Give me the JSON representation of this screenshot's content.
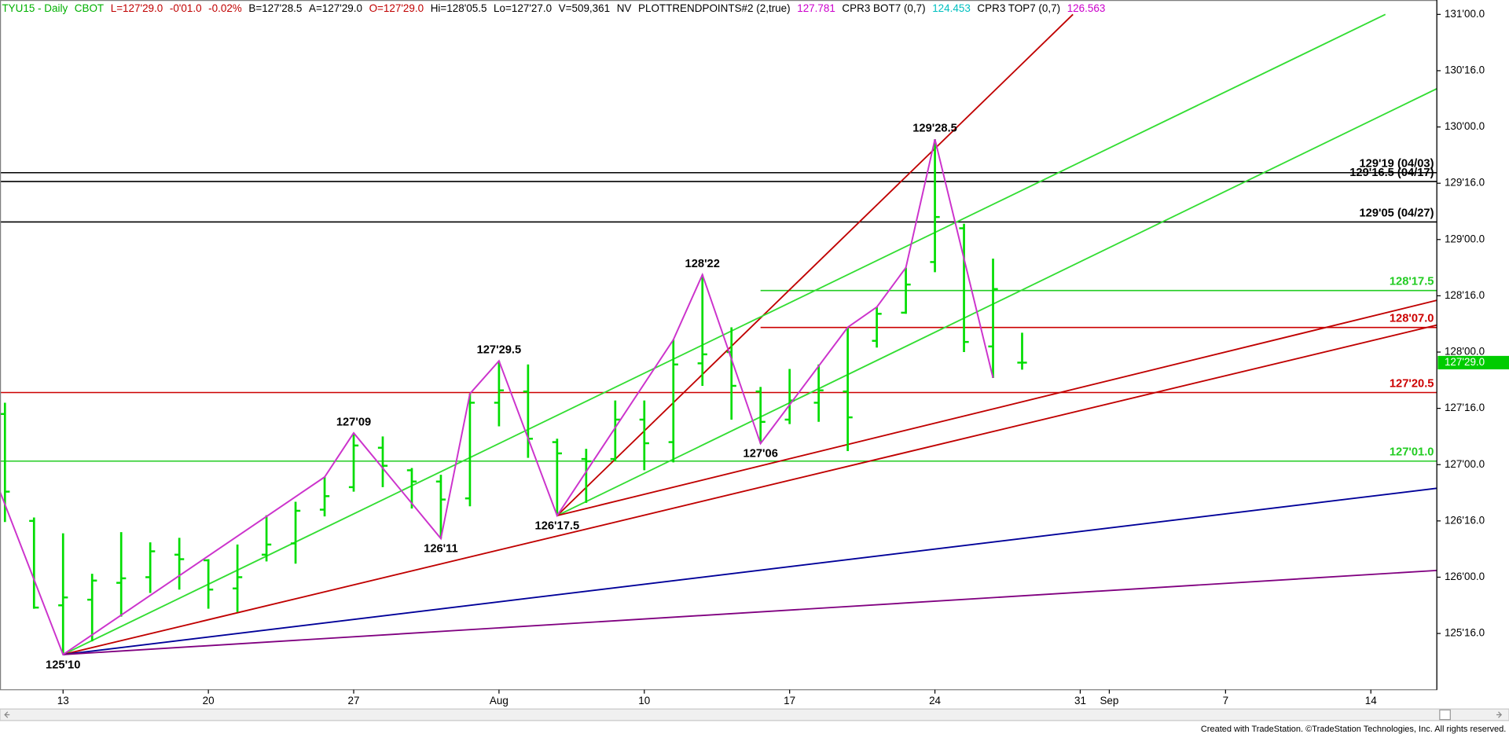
{
  "header": [
    {
      "text": "TYU15 - Daily",
      "color": "#00b000"
    },
    {
      "text": "CBOT",
      "color": "#00b000"
    },
    {
      "text": "L=127'29.0",
      "color": "#c00000"
    },
    {
      "text": "-0'01.0",
      "color": "#c00000"
    },
    {
      "text": "-0.02%",
      "color": "#c00000"
    },
    {
      "text": "B=127'28.5",
      "color": "#000000"
    },
    {
      "text": "A=127'29.0",
      "color": "#000000"
    },
    {
      "text": "O=127'29.0",
      "color": "#c00000"
    },
    {
      "text": "Hi=128'05.5",
      "color": "#000000"
    },
    {
      "text": "Lo=127'27.0",
      "color": "#000000"
    },
    {
      "text": "V=509,361",
      "color": "#000000"
    },
    {
      "text": "NV",
      "color": "#000000"
    },
    {
      "text": "PLOTTRENDPOINTS#2 (2,true)",
      "color": "#000000"
    },
    {
      "text": "127.781",
      "color": "#cc00cc"
    },
    {
      "text": "CPR3 BOT7 (0,7)",
      "color": "#000000"
    },
    {
      "text": "124.453",
      "color": "#00c0c0"
    },
    {
      "text": "CPR3 TOP7 (0,7)",
      "color": "#000000"
    },
    {
      "text": "126.563",
      "color": "#cc00cc"
    }
  ],
  "footer": "Created with TradeStation. ©TradeStation Technologies, Inc. All rights reserved.",
  "chart_data": {
    "type": "ohlc",
    "color": "#00dd00",
    "grid": false,
    "xlim": [
      -0.17,
      49.27
    ],
    "ylim": [
      125.0,
      131.128
    ],
    "xticks": [
      {
        "value": 2,
        "label": "13"
      },
      {
        "value": 7,
        "label": "20"
      },
      {
        "value": 12,
        "label": "27"
      },
      {
        "value": 17,
        "label": "Aug"
      },
      {
        "value": 22,
        "label": "10"
      },
      {
        "value": 27,
        "label": "17"
      },
      {
        "value": 32,
        "label": "24"
      },
      {
        "value": 37,
        "label": "31"
      },
      {
        "value": 38,
        "label": "Sep"
      },
      {
        "value": 42,
        "label": "7"
      },
      {
        "value": 47,
        "label": "14"
      }
    ],
    "yticks": [
      {
        "value": 131,
        "label": "131'00.0"
      },
      {
        "value": 130.5,
        "label": "130'16.0"
      },
      {
        "value": 130,
        "label": "130'00.0"
      },
      {
        "value": 129.5,
        "label": "129'16.0"
      },
      {
        "value": 129,
        "label": "129'00.0"
      },
      {
        "value": 128.5,
        "label": "128'16.0"
      },
      {
        "value": 128,
        "label": "128'00.0"
      },
      {
        "value": 127.5,
        "label": "127'16.0"
      },
      {
        "value": 127,
        "label": "127'00.0"
      },
      {
        "value": 126.5,
        "label": "126'16.0"
      },
      {
        "value": 126,
        "label": "126'00.0"
      },
      {
        "value": 125.5,
        "label": "125'16.0"
      }
    ],
    "x": [
      0,
      1,
      2,
      3,
      4,
      5,
      6,
      7,
      8,
      9,
      10,
      11,
      12,
      13,
      14,
      15,
      16,
      17,
      18,
      19,
      20,
      21,
      22,
      23,
      24,
      25,
      26,
      27,
      28,
      29,
      30,
      31,
      32,
      33,
      34,
      35
    ],
    "open": [
      127.45,
      126.5,
      125.75,
      125.8,
      125.95,
      126.0,
      126.2,
      126.15,
      125.9,
      126.2,
      126.3,
      126.6,
      126.8,
      127.15,
      126.95,
      126.85,
      126.7,
      127.55,
      127.65,
      127.2,
      127.05,
      127.05,
      127.4,
      127.2,
      127.9,
      128.0,
      127.65,
      127.4,
      127.55,
      127.65,
      128.1,
      128.35,
      128.8,
      129.1,
      128.05,
      127.90625
    ],
    "high": [
      127.55,
      126.53,
      126.39,
      126.03,
      126.4,
      126.31,
      126.35,
      126.16,
      126.29,
      126.55,
      126.67,
      126.89,
      127.28125,
      127.25,
      126.97,
      126.91,
      127.63,
      127.921875,
      127.89,
      127.23,
      127.14,
      127.57,
      127.57,
      128.11,
      128.6875,
      128.22,
      127.69,
      127.85,
      127.89,
      128.22,
      128.4,
      128.75,
      129.890625,
      129.14,
      128.83,
      128.171875
    ],
    "low": [
      126.49,
      125.72,
      125.3125,
      125.43,
      125.65,
      125.86,
      125.89,
      125.72,
      125.69,
      126.14,
      126.12,
      126.54,
      126.76,
      126.8,
      126.61,
      126.34375,
      126.63,
      127.34,
      127.06,
      126.546875,
      126.66,
      127.03,
      126.95,
      127.02,
      127.7,
      127.4,
      127.1875,
      127.36,
      127.38,
      127.12,
      128.04,
      128.34,
      128.71,
      128.0,
      127.77,
      127.84375
    ],
    "close": [
      126.76,
      125.73,
      125.82,
      125.97,
      125.99,
      126.23,
      126.16,
      125.89,
      126.0,
      126.29,
      126.59,
      126.72,
      127.17,
      126.99,
      126.85,
      126.69,
      127.55,
      127.66,
      127.23,
      127.1,
      127.03,
      127.4,
      127.19,
      127.89,
      127.98,
      127.7,
      127.38,
      127.57,
      127.66,
      127.42,
      128.34,
      128.6,
      129.2,
      128.09,
      128.56,
      127.90625
    ],
    "last_price": {
      "value": 127.90625,
      "label": "127'29.0",
      "color": "#00cc00"
    },
    "levels": [
      {
        "value": 129.59375,
        "label": "129'19 (04/03)",
        "color": "#000000"
      },
      {
        "value": 129.515625,
        "label": "129'16.5 (04/17)",
        "color": "#000000"
      },
      {
        "value": 129.15625,
        "label": "129'05 (04/27)",
        "color": "#000000"
      },
      {
        "value": 128.546875,
        "label": "128'17.5",
        "color": "#22cc22",
        "from": 26
      },
      {
        "value": 128.21875,
        "label": "128'07.0",
        "color": "#cc0000",
        "from": 26
      },
      {
        "value": 127.640625,
        "label": "127'20.5",
        "color": "#cc0000"
      },
      {
        "value": 127.03125,
        "label": "127'01.0",
        "color": "#22cc22"
      }
    ],
    "trendlines": [
      {
        "color": "#c00000",
        "x": [
          19,
          36.75
        ],
        "y": [
          126.546875,
          131.0
        ]
      },
      {
        "color": "#33dd33",
        "x": [
          2,
          47.5
        ],
        "y": [
          125.3125,
          131.0
        ]
      },
      {
        "color": "#33dd33",
        "x": [
          19,
          49.27
        ],
        "y": [
          126.546875,
          130.34
        ]
      },
      {
        "color": "#c00000",
        "x": [
          2,
          49.27
        ],
        "y": [
          125.3125,
          128.24
        ]
      },
      {
        "color": "#c00000",
        "x": [
          19,
          49.27
        ],
        "y": [
          126.546875,
          128.46
        ]
      },
      {
        "color": "#000099",
        "x": [
          2,
          49.27
        ],
        "y": [
          125.3125,
          126.79
        ]
      },
      {
        "color": "#800080",
        "x": [
          2,
          49.27
        ],
        "y": [
          125.3125,
          126.06
        ]
      }
    ],
    "swing": {
      "color": "#cc33cc",
      "x": [
        -0.17,
        2,
        11,
        12,
        15,
        16,
        17,
        19,
        23,
        24,
        26,
        29,
        30,
        31,
        32,
        34
      ],
      "y": [
        126.76,
        125.3125,
        126.89,
        127.28125,
        126.34375,
        127.63,
        127.921875,
        126.546875,
        128.11,
        128.6875,
        127.1875,
        128.22,
        128.4,
        128.75,
        129.890625,
        127.77
      ]
    },
    "pivots": [
      {
        "x": 2,
        "value": 125.3125,
        "label": "125'10"
      },
      {
        "x": 12,
        "value": 127.28125,
        "label": "127'09"
      },
      {
        "x": 15,
        "value": 126.34375,
        "label": "126'11"
      },
      {
        "x": 17,
        "value": 127.921875,
        "label": "127'29.5"
      },
      {
        "x": 19,
        "value": 126.546875,
        "label": "126'17.5"
      },
      {
        "x": 24,
        "value": 128.6875,
        "label": "128'22"
      },
      {
        "x": 26,
        "value": 127.1875,
        "label": "127'06"
      },
      {
        "x": 32,
        "value": 129.890625,
        "label": "129'28.5"
      }
    ]
  }
}
